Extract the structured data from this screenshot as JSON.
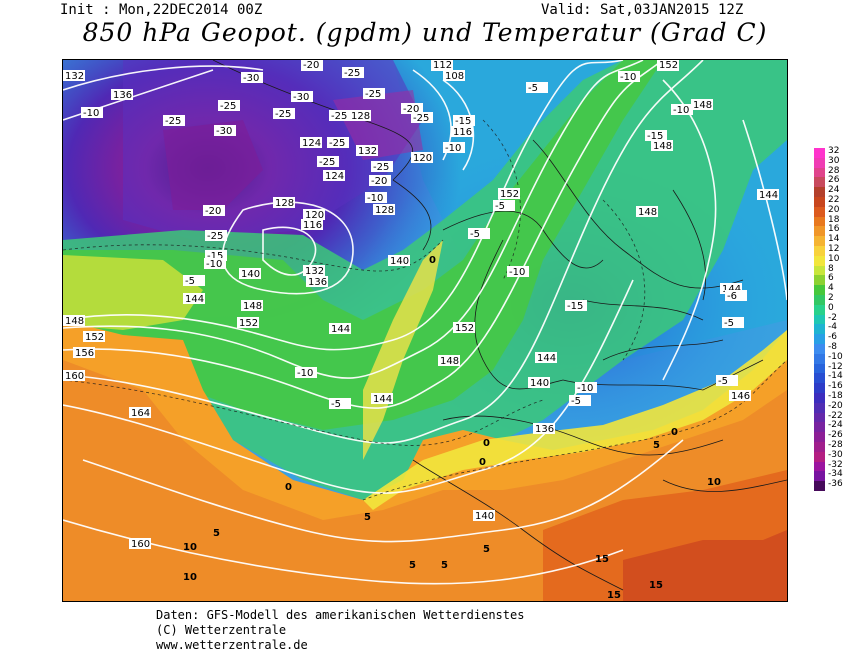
{
  "header": {
    "init": "Init : Mon,22DEC2014 00Z",
    "valid": "Valid: Sat,03JAN2015 12Z",
    "title": "850 hPa Geopot. (gpdm) und Temperatur (Grad C)"
  },
  "map": {
    "geopotential_labels": [
      "112",
      "108",
      "116",
      "120",
      "124",
      "128",
      "132",
      "136",
      "140",
      "144",
      "148",
      "152",
      "156",
      "160",
      "164"
    ],
    "temperature_labels": [
      "-30",
      "-25",
      "-20",
      "-15",
      "-10",
      "-5",
      "0",
      "5",
      "10",
      "15"
    ]
  },
  "scale": {
    "values": [
      "32",
      "30",
      "28",
      "26",
      "24",
      "22",
      "20",
      "18",
      "16",
      "14",
      "12",
      "10",
      "8",
      "6",
      "4",
      "2",
      "0",
      "-2",
      "-4",
      "-6",
      "-8",
      "-10",
      "-12",
      "-14",
      "-16",
      "-18",
      "-20",
      "-22",
      "-24",
      "-26",
      "-28",
      "-30",
      "-32",
      "-34",
      "-36"
    ],
    "colors": [
      "#ff33cc",
      "#f03cb4",
      "#e0448c",
      "#c84a5e",
      "#b3402c",
      "#c8461e",
      "#dc5a1e",
      "#e8781e",
      "#f09628",
      "#f5b432",
      "#f8d23c",
      "#f2e63c",
      "#c8e63c",
      "#8cd232",
      "#46c83c",
      "#32c864",
      "#28d28c",
      "#1ec8b4",
      "#1eb4d2",
      "#28a0e6",
      "#3c8cf0",
      "#3278e6",
      "#2864dc",
      "#284ed2",
      "#2d3cc8",
      "#3c2dbe",
      "#502db4",
      "#6428aa",
      "#7823a0",
      "#8c1e96",
      "#a01e8c",
      "#b41e82",
      "#9b14a0",
      "#7814a0",
      "#460a5a"
    ]
  },
  "footer": {
    "line1": "Daten: GFS-Modell des amerikanischen Wetterdienstes",
    "line2": "(C) Wetterzentrale",
    "line3": "www.wetterzentrale.de"
  }
}
